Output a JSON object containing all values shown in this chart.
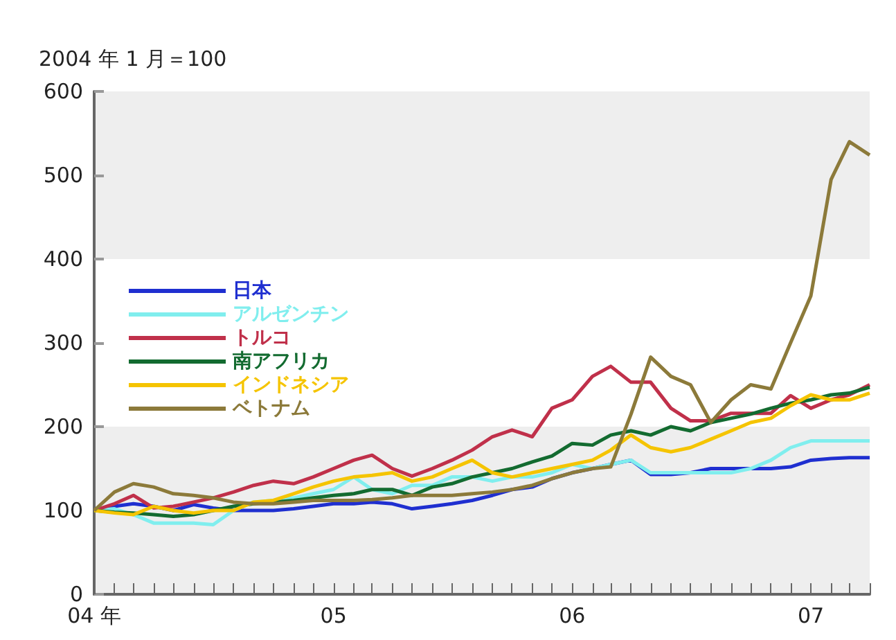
{
  "chart_data": {
    "type": "line",
    "ylabel": "2004 年 1 月＝100",
    "x": [
      "2004-01",
      "2004-02",
      "2004-03",
      "2004-04",
      "2004-05",
      "2004-06",
      "2004-07",
      "2004-08",
      "2004-09",
      "2004-10",
      "2004-11",
      "2004-12",
      "2005-01",
      "2005-02",
      "2005-03",
      "2005-04",
      "2005-05",
      "2005-06",
      "2005-07",
      "2005-08",
      "2005-09",
      "2005-10",
      "2005-11",
      "2005-12",
      "2006-01",
      "2006-02",
      "2006-03",
      "2006-04",
      "2006-05",
      "2006-06",
      "2006-07",
      "2006-08",
      "2006-09",
      "2006-10",
      "2006-11",
      "2006-12",
      "2007-01",
      "2007-02",
      "2007-03",
      "2007-04"
    ],
    "series": [
      {
        "name": "日本",
        "color": "#1f2fd0",
        "values": [
          100,
          105,
          108,
          105,
          100,
          107,
          103,
          100,
          100,
          100,
          102,
          105,
          108,
          108,
          110,
          108,
          102,
          105,
          108,
          112,
          118,
          125,
          128,
          138,
          145,
          150,
          155,
          160,
          143,
          143,
          145,
          150,
          150,
          150,
          150,
          152,
          160,
          162,
          163,
          163
        ]
      },
      {
        "name": "アルゼンチン",
        "color": "#80eeee",
        "values": [
          100,
          102,
          95,
          85,
          85,
          85,
          83,
          100,
          110,
          112,
          115,
          120,
          125,
          140,
          125,
          120,
          130,
          130,
          140,
          140,
          135,
          140,
          140,
          145,
          155,
          150,
          155,
          160,
          145,
          145,
          145,
          145,
          145,
          150,
          160,
          175,
          183,
          183,
          183,
          183
        ]
      },
      {
        "name": "トルコ",
        "color": "#c0304a",
        "values": [
          100,
          108,
          118,
          103,
          105,
          110,
          115,
          122,
          130,
          135,
          132,
          140,
          150,
          160,
          166,
          150,
          141,
          150,
          160,
          172,
          188,
          196,
          188,
          222,
          232,
          260,
          272,
          253,
          253,
          222,
          207,
          207,
          216,
          216,
          216,
          237,
          222,
          232,
          238,
          250
        ]
      },
      {
        "name": "南アフリカ",
        "color": "#136b30",
        "values": [
          100,
          98,
          97,
          95,
          93,
          95,
          100,
          105,
          108,
          110,
          112,
          115,
          118,
          120,
          125,
          125,
          118,
          128,
          132,
          140,
          145,
          150,
          158,
          165,
          180,
          178,
          190,
          195,
          190,
          200,
          195,
          205,
          210,
          215,
          222,
          228,
          232,
          238,
          240,
          247
        ]
      },
      {
        "name": "インドネシア",
        "color": "#f5c400",
        "values": [
          100,
          97,
          95,
          105,
          100,
          97,
          100,
          100,
          110,
          112,
          120,
          128,
          135,
          140,
          142,
          145,
          135,
          140,
          150,
          160,
          145,
          140,
          145,
          150,
          155,
          160,
          172,
          190,
          175,
          170,
          175,
          185,
          195,
          205,
          210,
          225,
          238,
          232,
          232,
          240
        ]
      },
      {
        "name": "ベトナム",
        "color": "#8c7a3a",
        "values": [
          100,
          122,
          132,
          128,
          120,
          118,
          115,
          110,
          108,
          108,
          110,
          112,
          112,
          112,
          113,
          115,
          118,
          118,
          118,
          120,
          122,
          125,
          130,
          138,
          145,
          150,
          152,
          215,
          283,
          260,
          250,
          205,
          232,
          250,
          245,
          300,
          356,
          495,
          540,
          524
        ]
      }
    ],
    "xlim": [
      "2004-01",
      "2007-04"
    ],
    "xticks": [
      {
        "value": "2004-01",
        "label": "04 年"
      },
      {
        "value": "2004-02",
        "label": null
      },
      {
        "value": "2004-03",
        "label": null
      },
      {
        "value": "2004-04",
        "label": null
      },
      {
        "value": "2004-05",
        "label": null
      },
      {
        "value": "2004-06",
        "label": null
      },
      {
        "value": "2004-07",
        "label": null
      },
      {
        "value": "2004-08",
        "label": null
      },
      {
        "value": "2004-09",
        "label": null
      },
      {
        "value": "2004-10",
        "label": null
      },
      {
        "value": "2004-11",
        "label": null
      },
      {
        "value": "2004-12",
        "label": null
      },
      {
        "value": "2005-01",
        "label": "05"
      },
      {
        "value": "2005-02",
        "label": null
      },
      {
        "value": "2005-03",
        "label": null
      },
      {
        "value": "2005-04",
        "label": null
      },
      {
        "value": "2005-05",
        "label": null
      },
      {
        "value": "2005-06",
        "label": null
      },
      {
        "value": "2005-07",
        "label": null
      },
      {
        "value": "2005-08",
        "label": null
      },
      {
        "value": "2005-09",
        "label": null
      },
      {
        "value": "2005-10",
        "label": null
      },
      {
        "value": "2005-11",
        "label": null
      },
      {
        "value": "2005-12",
        "label": null
      },
      {
        "value": "2006-01",
        "label": "06"
      },
      {
        "value": "2006-02",
        "label": null
      },
      {
        "value": "2006-03",
        "label": null
      },
      {
        "value": "2006-04",
        "label": null
      },
      {
        "value": "2006-05",
        "label": null
      },
      {
        "value": "2006-06",
        "label": null
      },
      {
        "value": "2006-07",
        "label": null
      },
      {
        "value": "2006-08",
        "label": null
      },
      {
        "value": "2006-09",
        "label": null
      },
      {
        "value": "2006-10",
        "label": null
      },
      {
        "value": "2006-11",
        "label": null
      },
      {
        "value": "2006-12",
        "label": null
      },
      {
        "value": "2007-01",
        "label": "07"
      },
      {
        "value": "2007-02",
        "label": null
      },
      {
        "value": "2007-03",
        "label": null
      },
      {
        "value": "2007-04",
        "label": null
      }
    ],
    "ylim": [
      0,
      600
    ],
    "yticks": [
      0,
      100,
      200,
      300,
      400,
      500,
      600
    ],
    "bands": [
      {
        "axis": "y",
        "from": 0,
        "to": 200,
        "color": "#eeeeee"
      },
      {
        "axis": "y",
        "from": 400,
        "to": 600,
        "color": "#eeeeee"
      }
    ],
    "grid": false,
    "legend": "left",
    "marker": "none",
    "line_style": "solid"
  }
}
